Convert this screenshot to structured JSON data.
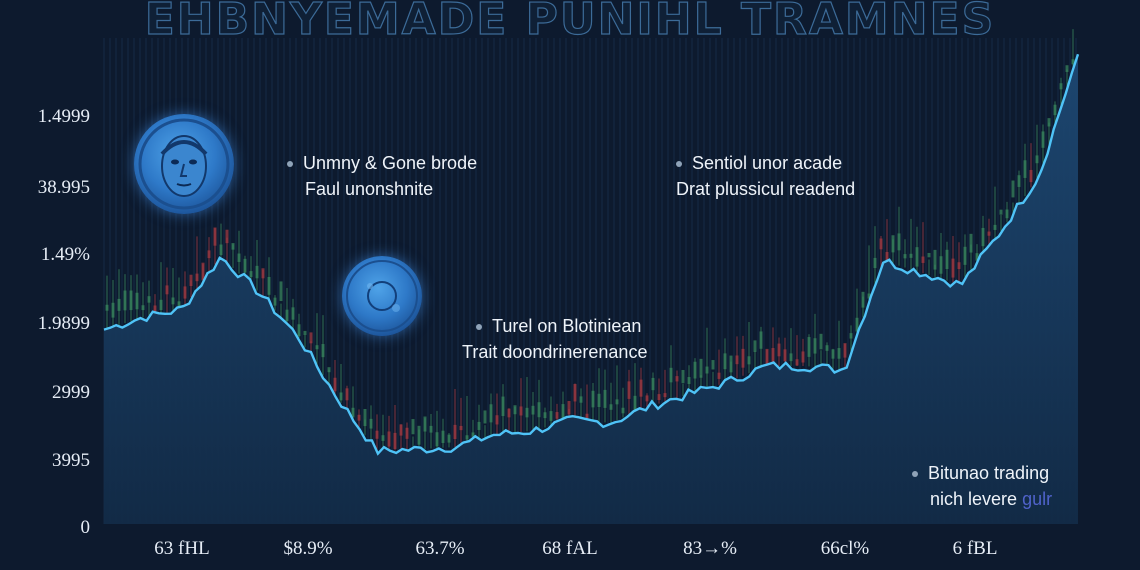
{
  "chart_data": {
    "type": "line",
    "title": "EHBNYEMADE PUNIHL TRAMNES",
    "y_tick_labels": [
      "1.4999",
      "38.995",
      "1.49%",
      "1.9899",
      "2999",
      "3995",
      "0"
    ],
    "x_tick_labels": [
      "63 fHL",
      "$8.9%",
      "63.7%",
      "68 fAL",
      "83→%",
      "66cl%",
      "6 fBL"
    ],
    "ylim": [
      0,
      6
    ],
    "grid": "vertical",
    "series": [
      {
        "x": [
          0,
          4,
          8,
          12,
          16,
          20,
          24,
          28,
          32,
          36,
          40,
          44,
          48,
          52,
          56,
          60,
          64,
          68,
          72,
          76,
          80,
          84,
          88,
          92,
          96,
          100
        ],
        "values": [
          2.4,
          2.55,
          2.65,
          3.3,
          2.85,
          2.3,
          1.55,
          0.9,
          0.92,
          0.95,
          1.1,
          1.15,
          1.28,
          1.25,
          1.45,
          1.6,
          1.75,
          1.95,
          1.95,
          1.9,
          3.25,
          3.1,
          2.95,
          3.6,
          4.3,
          5.8
        ],
        "colors": {
          "line": "#4fc3f7",
          "area_top": "#1d4873",
          "area_bottom": "#122b47"
        }
      }
    ],
    "annotations": [
      {
        "lines": [
          "Unmny & Gone brode",
          "Faul unonshnite"
        ]
      },
      {
        "lines": [
          "Sentiol unor acade",
          "Drat plussicul readend"
        ]
      },
      {
        "lines": [
          "Turel on Blotiniean",
          "Trait doondrinerenance"
        ]
      },
      {
        "lines": [
          "Bitunao trading",
          "nich levere "
        ],
        "accent": "gulr"
      }
    ],
    "candle_colors": {
      "up": "#3a8a5f",
      "down": "#a83a42"
    },
    "icons": [
      "face-coin-icon",
      "coin-icon"
    ]
  }
}
